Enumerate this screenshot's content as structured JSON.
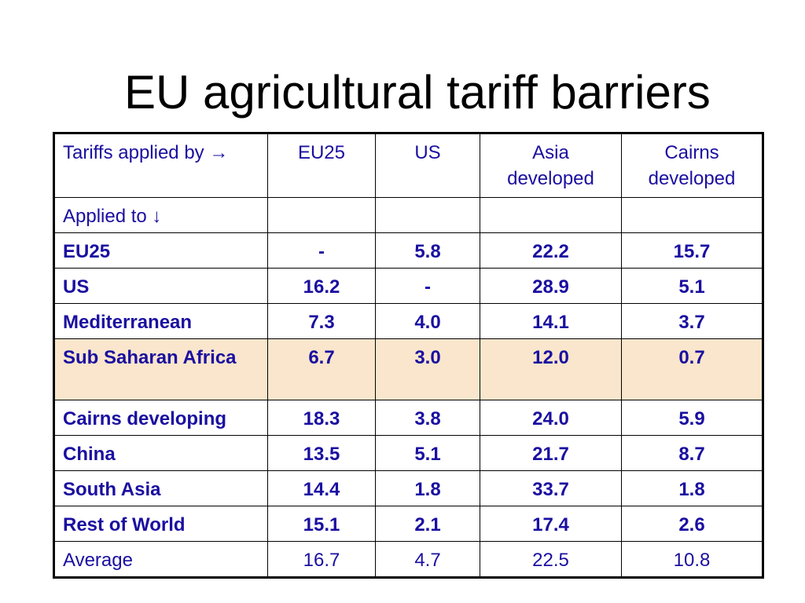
{
  "slide": {
    "title": "EU agricultural tariff barriers"
  },
  "table": {
    "header_row": {
      "label": "Tariffs applied by →",
      "columns": [
        "EU25",
        "US",
        "Asia developed",
        "Cairns developed"
      ]
    },
    "applied_to_label": "Applied to ↓",
    "rows": [
      {
        "region": "EU25",
        "values": [
          "-",
          "5.8",
          "22.2",
          "15.7"
        ]
      },
      {
        "region": "US",
        "values": [
          "16.2",
          "-",
          "28.9",
          "5.1"
        ]
      },
      {
        "region": "Mediterranean",
        "values": [
          "7.3",
          "4.0",
          "14.1",
          "3.7"
        ]
      },
      {
        "region": "Sub Saharan Africa",
        "values": [
          "6.7",
          "3.0",
          "12.0",
          "0.7"
        ],
        "highlighted": true
      },
      {
        "region": "Cairns developing",
        "values": [
          "18.3",
          "3.8",
          "24.0",
          "5.9"
        ]
      },
      {
        "region": "China",
        "values": [
          "13.5",
          "5.1",
          "21.7",
          "8.7"
        ]
      },
      {
        "region": "South Asia",
        "values": [
          "14.4",
          "1.8",
          "33.7",
          "1.8"
        ]
      },
      {
        "region": "Rest of World",
        "values": [
          "15.1",
          "2.1",
          "17.4",
          "2.6"
        ]
      }
    ],
    "average_row": {
      "label": "Average",
      "values": [
        "16.7",
        "4.7",
        "22.5",
        "10.8"
      ]
    }
  },
  "colors": {
    "text": "#1a0fa0",
    "highlight_row": "#fae6cc",
    "border": "#000000",
    "title": "#000000"
  }
}
